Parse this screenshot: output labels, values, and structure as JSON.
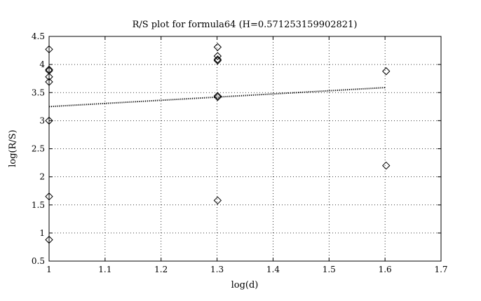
{
  "chart_data": {
    "type": "scatter",
    "title": "R/S plot for formula64 (H=0.571253159902821)",
    "xlabel": "log(d)",
    "ylabel": "log(R/S)",
    "xlim": [
      1,
      1.7
    ],
    "ylim": [
      0.5,
      4.5
    ],
    "xticks": [
      "1",
      "1.1",
      "1.2",
      "1.3",
      "1.4",
      "1.5",
      "1.6",
      "1.7"
    ],
    "yticks": [
      "0.5",
      "1",
      "1.5",
      "2",
      "2.5",
      "3",
      "3.5",
      "4",
      "4.5"
    ],
    "grid": true,
    "series": [
      {
        "marker": "diamond",
        "points": [
          [
            1.0,
            4.27
          ],
          [
            1.0,
            3.91
          ],
          [
            1.0,
            3.89
          ],
          [
            1.0,
            3.78
          ],
          [
            1.0,
            3.69
          ],
          [
            1.0,
            3.0
          ],
          [
            1.0,
            1.65
          ],
          [
            1.0,
            0.88
          ],
          [
            1.301,
            4.31
          ],
          [
            1.301,
            4.15
          ],
          [
            1.301,
            4.09
          ],
          [
            1.301,
            4.07
          ],
          [
            1.301,
            3.44
          ],
          [
            1.301,
            3.42
          ],
          [
            1.301,
            1.58
          ],
          [
            1.602,
            3.88
          ],
          [
            1.602,
            2.2
          ]
        ]
      },
      {
        "style": "dotted-line",
        "points": [
          [
            1.0,
            3.25
          ],
          [
            1.602,
            3.59
          ]
        ]
      }
    ]
  }
}
